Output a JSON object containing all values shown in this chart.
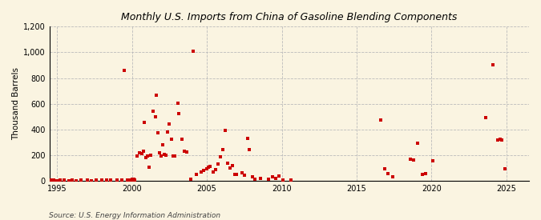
{
  "title": "Monthly U.S. Imports from China of Gasoline Blending Components",
  "ylabel": "Thousand Barrels",
  "source": "Source: U.S. Energy Information Administration",
  "background_color": "#FAF4E1",
  "plot_bg_color": "#FAF4E1",
  "marker_color": "#CC0000",
  "marker_size": 5,
  "ylim": [
    0,
    1200
  ],
  "yticks": [
    0,
    200,
    400,
    600,
    800,
    1000,
    1200
  ],
  "ytick_labels": [
    "0",
    "200",
    "400",
    "600",
    "800",
    "1,000",
    "1,200"
  ],
  "xtick_positions": [
    1995,
    2000,
    2005,
    2010,
    2015,
    2020,
    2025
  ],
  "xtick_labels": [
    "1995",
    "2000",
    "2005",
    "2010",
    "2015",
    "2020",
    "2025"
  ],
  "xlim_start": 1994.5,
  "xlim_end": 2026.5,
  "data": [
    [
      1994.6,
      5
    ],
    [
      1994.8,
      3
    ],
    [
      1995.0,
      2
    ],
    [
      1995.2,
      4
    ],
    [
      1995.5,
      3
    ],
    [
      1995.8,
      2
    ],
    [
      1996.0,
      3
    ],
    [
      1996.3,
      2
    ],
    [
      1996.6,
      4
    ],
    [
      1997.0,
      3
    ],
    [
      1997.3,
      2
    ],
    [
      1997.6,
      4
    ],
    [
      1998.0,
      5
    ],
    [
      1998.3,
      3
    ],
    [
      1998.6,
      4
    ],
    [
      1999.0,
      5
    ],
    [
      1999.3,
      3
    ],
    [
      1999.5,
      857
    ],
    [
      1999.7,
      8
    ],
    [
      1999.9,
      6
    ],
    [
      2000.0,
      12
    ],
    [
      2000.1,
      8
    ],
    [
      2000.15,
      10
    ],
    [
      2000.2,
      6
    ],
    [
      2000.35,
      195
    ],
    [
      2000.5,
      220
    ],
    [
      2000.65,
      210
    ],
    [
      2000.75,
      230
    ],
    [
      2000.85,
      455
    ],
    [
      2000.95,
      180
    ],
    [
      2001.05,
      190
    ],
    [
      2001.15,
      105
    ],
    [
      2001.25,
      200
    ],
    [
      2001.4,
      540
    ],
    [
      2001.55,
      500
    ],
    [
      2001.65,
      665
    ],
    [
      2001.75,
      375
    ],
    [
      2001.85,
      220
    ],
    [
      2001.95,
      195
    ],
    [
      2002.05,
      280
    ],
    [
      2002.15,
      205
    ],
    [
      2002.25,
      200
    ],
    [
      2002.35,
      380
    ],
    [
      2002.5,
      440
    ],
    [
      2002.65,
      325
    ],
    [
      2002.75,
      195
    ],
    [
      2002.85,
      190
    ],
    [
      2003.05,
      605
    ],
    [
      2003.15,
      525
    ],
    [
      2003.35,
      325
    ],
    [
      2003.5,
      230
    ],
    [
      2003.65,
      225
    ],
    [
      2003.95,
      10
    ],
    [
      2004.1,
      1010
    ],
    [
      2004.3,
      50
    ],
    [
      2004.6,
      70
    ],
    [
      2004.8,
      80
    ],
    [
      2005.0,
      90
    ],
    [
      2005.1,
      105
    ],
    [
      2005.2,
      110
    ],
    [
      2005.4,
      70
    ],
    [
      2005.6,
      85
    ],
    [
      2005.75,
      130
    ],
    [
      2005.9,
      185
    ],
    [
      2006.05,
      245
    ],
    [
      2006.2,
      395
    ],
    [
      2006.4,
      135
    ],
    [
      2006.55,
      100
    ],
    [
      2006.7,
      115
    ],
    [
      2006.85,
      50
    ],
    [
      2007.0,
      50
    ],
    [
      2007.35,
      60
    ],
    [
      2007.5,
      40
    ],
    [
      2007.7,
      330
    ],
    [
      2007.85,
      245
    ],
    [
      2008.05,
      30
    ],
    [
      2008.2,
      10
    ],
    [
      2008.6,
      15
    ],
    [
      2009.1,
      10
    ],
    [
      2009.4,
      30
    ],
    [
      2009.6,
      20
    ],
    [
      2009.8,
      35
    ],
    [
      2010.1,
      8
    ],
    [
      2010.6,
      5
    ],
    [
      2016.6,
      470
    ],
    [
      2016.85,
      90
    ],
    [
      2017.1,
      55
    ],
    [
      2017.4,
      30
    ],
    [
      2018.6,
      165
    ],
    [
      2018.8,
      160
    ],
    [
      2019.05,
      295
    ],
    [
      2019.4,
      50
    ],
    [
      2019.6,
      55
    ],
    [
      2020.1,
      155
    ],
    [
      2023.6,
      490
    ],
    [
      2024.1,
      905
    ],
    [
      2024.4,
      315
    ],
    [
      2024.55,
      325
    ],
    [
      2024.7,
      315
    ],
    [
      2024.9,
      90
    ]
  ]
}
